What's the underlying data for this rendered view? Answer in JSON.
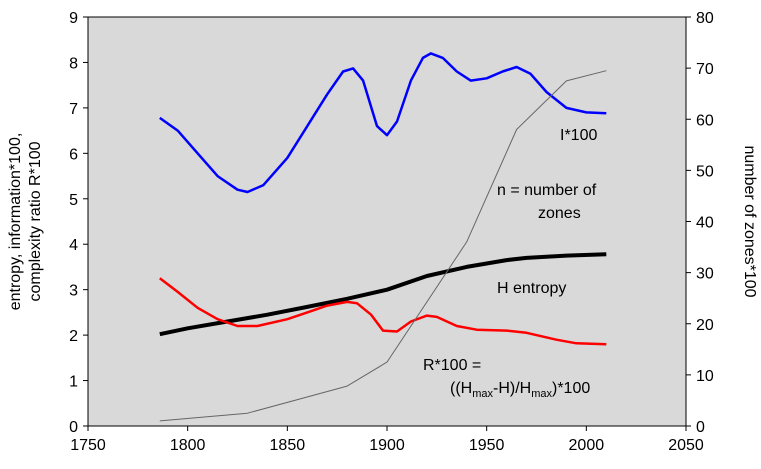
{
  "chart_data": {
    "type": "line",
    "ylabel": [
      "entropy, information*100,",
      "complexity ratio R*100"
    ],
    "y2label": "number of zones*100",
    "xlim": [
      1750,
      2050
    ],
    "xticks": [
      1750,
      1800,
      1850,
      1900,
      1950,
      2000,
      2050
    ],
    "ylim": [
      0,
      9
    ],
    "yticks": [
      0,
      1,
      2,
      3,
      4,
      5,
      6,
      7,
      8,
      9
    ],
    "y2lim": [
      0,
      80
    ],
    "y2ticks": [
      0,
      10,
      20,
      30,
      40,
      50,
      60,
      70,
      80
    ],
    "background": "#d9d9d9",
    "series": [
      {
        "name": "I*100",
        "color": "#0000ff",
        "width": 2.5,
        "x": [
          1786,
          1795,
          1805,
          1815,
          1825,
          1830,
          1838,
          1850,
          1860,
          1870,
          1878,
          1883,
          1888,
          1895,
          1900,
          1905,
          1912,
          1918,
          1922,
          1928,
          1935,
          1942,
          1950,
          1958,
          1965,
          1972,
          1980,
          1990,
          2000,
          2010
        ],
        "values": [
          6.78,
          6.5,
          6.0,
          5.5,
          5.2,
          5.15,
          5.3,
          5.9,
          6.6,
          7.3,
          7.8,
          7.87,
          7.6,
          6.6,
          6.4,
          6.7,
          7.6,
          8.1,
          8.2,
          8.1,
          7.8,
          7.6,
          7.65,
          7.8,
          7.9,
          7.75,
          7.35,
          7.0,
          6.9,
          6.88
        ]
      },
      {
        "name": "H entropy",
        "color": "#000000",
        "width": 4,
        "x": [
          1786,
          1800,
          1820,
          1840,
          1860,
          1880,
          1900,
          1920,
          1940,
          1960,
          1970,
          1990,
          2010
        ],
        "values": [
          2.02,
          2.15,
          2.3,
          2.45,
          2.62,
          2.8,
          3.0,
          3.3,
          3.5,
          3.65,
          3.7,
          3.75,
          3.78
        ]
      },
      {
        "name": "R*100",
        "color": "#ff0000",
        "width": 2.5,
        "x": [
          1786,
          1795,
          1805,
          1815,
          1825,
          1835,
          1850,
          1860,
          1870,
          1880,
          1885,
          1892,
          1898,
          1905,
          1912,
          1920,
          1925,
          1935,
          1945,
          1960,
          1970,
          1985,
          1995,
          2010
        ],
        "values": [
          3.25,
          2.95,
          2.6,
          2.35,
          2.2,
          2.2,
          2.35,
          2.5,
          2.65,
          2.73,
          2.7,
          2.45,
          2.1,
          2.08,
          2.3,
          2.43,
          2.4,
          2.2,
          2.12,
          2.1,
          2.05,
          1.9,
          1.82,
          1.8
        ]
      },
      {
        "name": "n = number of zones",
        "color": "#666666",
        "width": 1,
        "axis": "y2",
        "x": [
          1786,
          1830,
          1880,
          1900,
          1940,
          1965,
          1990,
          2010
        ],
        "values": [
          1,
          2.5,
          7.8,
          12.5,
          36,
          58,
          67.5,
          69.5
        ]
      }
    ],
    "annotations": [
      "I*100",
      "n = number of",
      "zones",
      "H entropy",
      "R*100 ="
    ],
    "formula": [
      "((H",
      "max",
      "-H)/H",
      "max",
      ")*100"
    ]
  }
}
